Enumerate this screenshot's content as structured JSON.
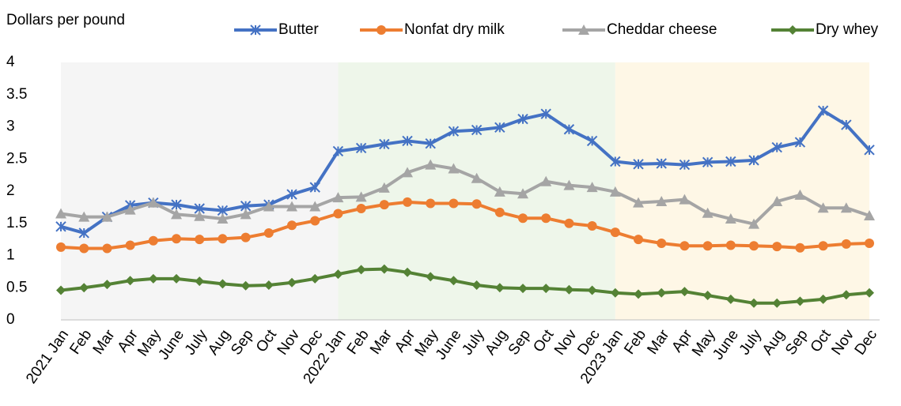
{
  "chart_data": {
    "type": "line",
    "y_label": "Dollars per pound",
    "categories": [
      "2021 Jan",
      "Feb",
      "Mar",
      "Apr",
      "May",
      "June",
      "July",
      "Aug",
      "Sep",
      "Oct",
      "Nov",
      "Dec",
      "2022 Jan",
      "Feb",
      "Mar",
      "Apr",
      "May",
      "June",
      "July",
      "Aug",
      "Sep",
      "Oct",
      "Nov",
      "Dec",
      "2023 Jan",
      "Feb",
      "Mar",
      "Apr",
      "May",
      "June",
      "July",
      "Aug",
      "Sep",
      "Oct",
      "Nov",
      "Dec"
    ],
    "series": [
      {
        "name": "Butter",
        "color": "#4472c4",
        "marker": "asterisk",
        "values": [
          1.45,
          1.35,
          1.6,
          1.78,
          1.82,
          1.79,
          1.73,
          1.7,
          1.77,
          1.79,
          1.95,
          2.06,
          2.62,
          2.67,
          2.73,
          2.78,
          2.74,
          2.93,
          2.95,
          2.99,
          3.12,
          3.2,
          2.96,
          2.78,
          2.46,
          2.42,
          2.43,
          2.41,
          2.45,
          2.46,
          2.48,
          2.68,
          2.76,
          3.25,
          3.03,
          2.64
        ]
      },
      {
        "name": "Nonfat dry milk",
        "color": "#ed7d31",
        "marker": "circle",
        "values": [
          1.13,
          1.11,
          1.11,
          1.16,
          1.23,
          1.26,
          1.25,
          1.26,
          1.28,
          1.35,
          1.47,
          1.54,
          1.65,
          1.73,
          1.79,
          1.83,
          1.81,
          1.81,
          1.8,
          1.67,
          1.58,
          1.58,
          1.5,
          1.46,
          1.36,
          1.25,
          1.19,
          1.15,
          1.15,
          1.16,
          1.15,
          1.14,
          1.12,
          1.15,
          1.18,
          1.19
        ]
      },
      {
        "name": "Cheddar cheese",
        "color": "#a5a5a5",
        "marker": "triangle",
        "values": [
          1.65,
          1.6,
          1.6,
          1.71,
          1.82,
          1.64,
          1.61,
          1.57,
          1.64,
          1.76,
          1.76,
          1.76,
          1.9,
          1.91,
          2.05,
          2.29,
          2.41,
          2.35,
          2.2,
          1.99,
          1.96,
          2.15,
          2.09,
          2.06,
          1.99,
          1.82,
          1.84,
          1.87,
          1.66,
          1.57,
          1.49,
          1.84,
          1.94,
          1.74,
          1.74,
          1.62
        ]
      },
      {
        "name": "Dry whey",
        "color": "#548235",
        "marker": "diamond",
        "values": [
          0.46,
          0.5,
          0.55,
          0.61,
          0.64,
          0.64,
          0.6,
          0.56,
          0.53,
          0.54,
          0.58,
          0.64,
          0.71,
          0.78,
          0.79,
          0.74,
          0.67,
          0.61,
          0.54,
          0.5,
          0.49,
          0.49,
          0.47,
          0.46,
          0.42,
          0.4,
          0.42,
          0.44,
          0.38,
          0.32,
          0.26,
          0.26,
          0.29,
          0.32,
          0.39,
          0.42
        ]
      }
    ],
    "ylim": [
      0,
      4
    ],
    "yticks": [
      0,
      0.5,
      1,
      1.5,
      2,
      2.5,
      3,
      3.5,
      4
    ],
    "grid": false
  }
}
